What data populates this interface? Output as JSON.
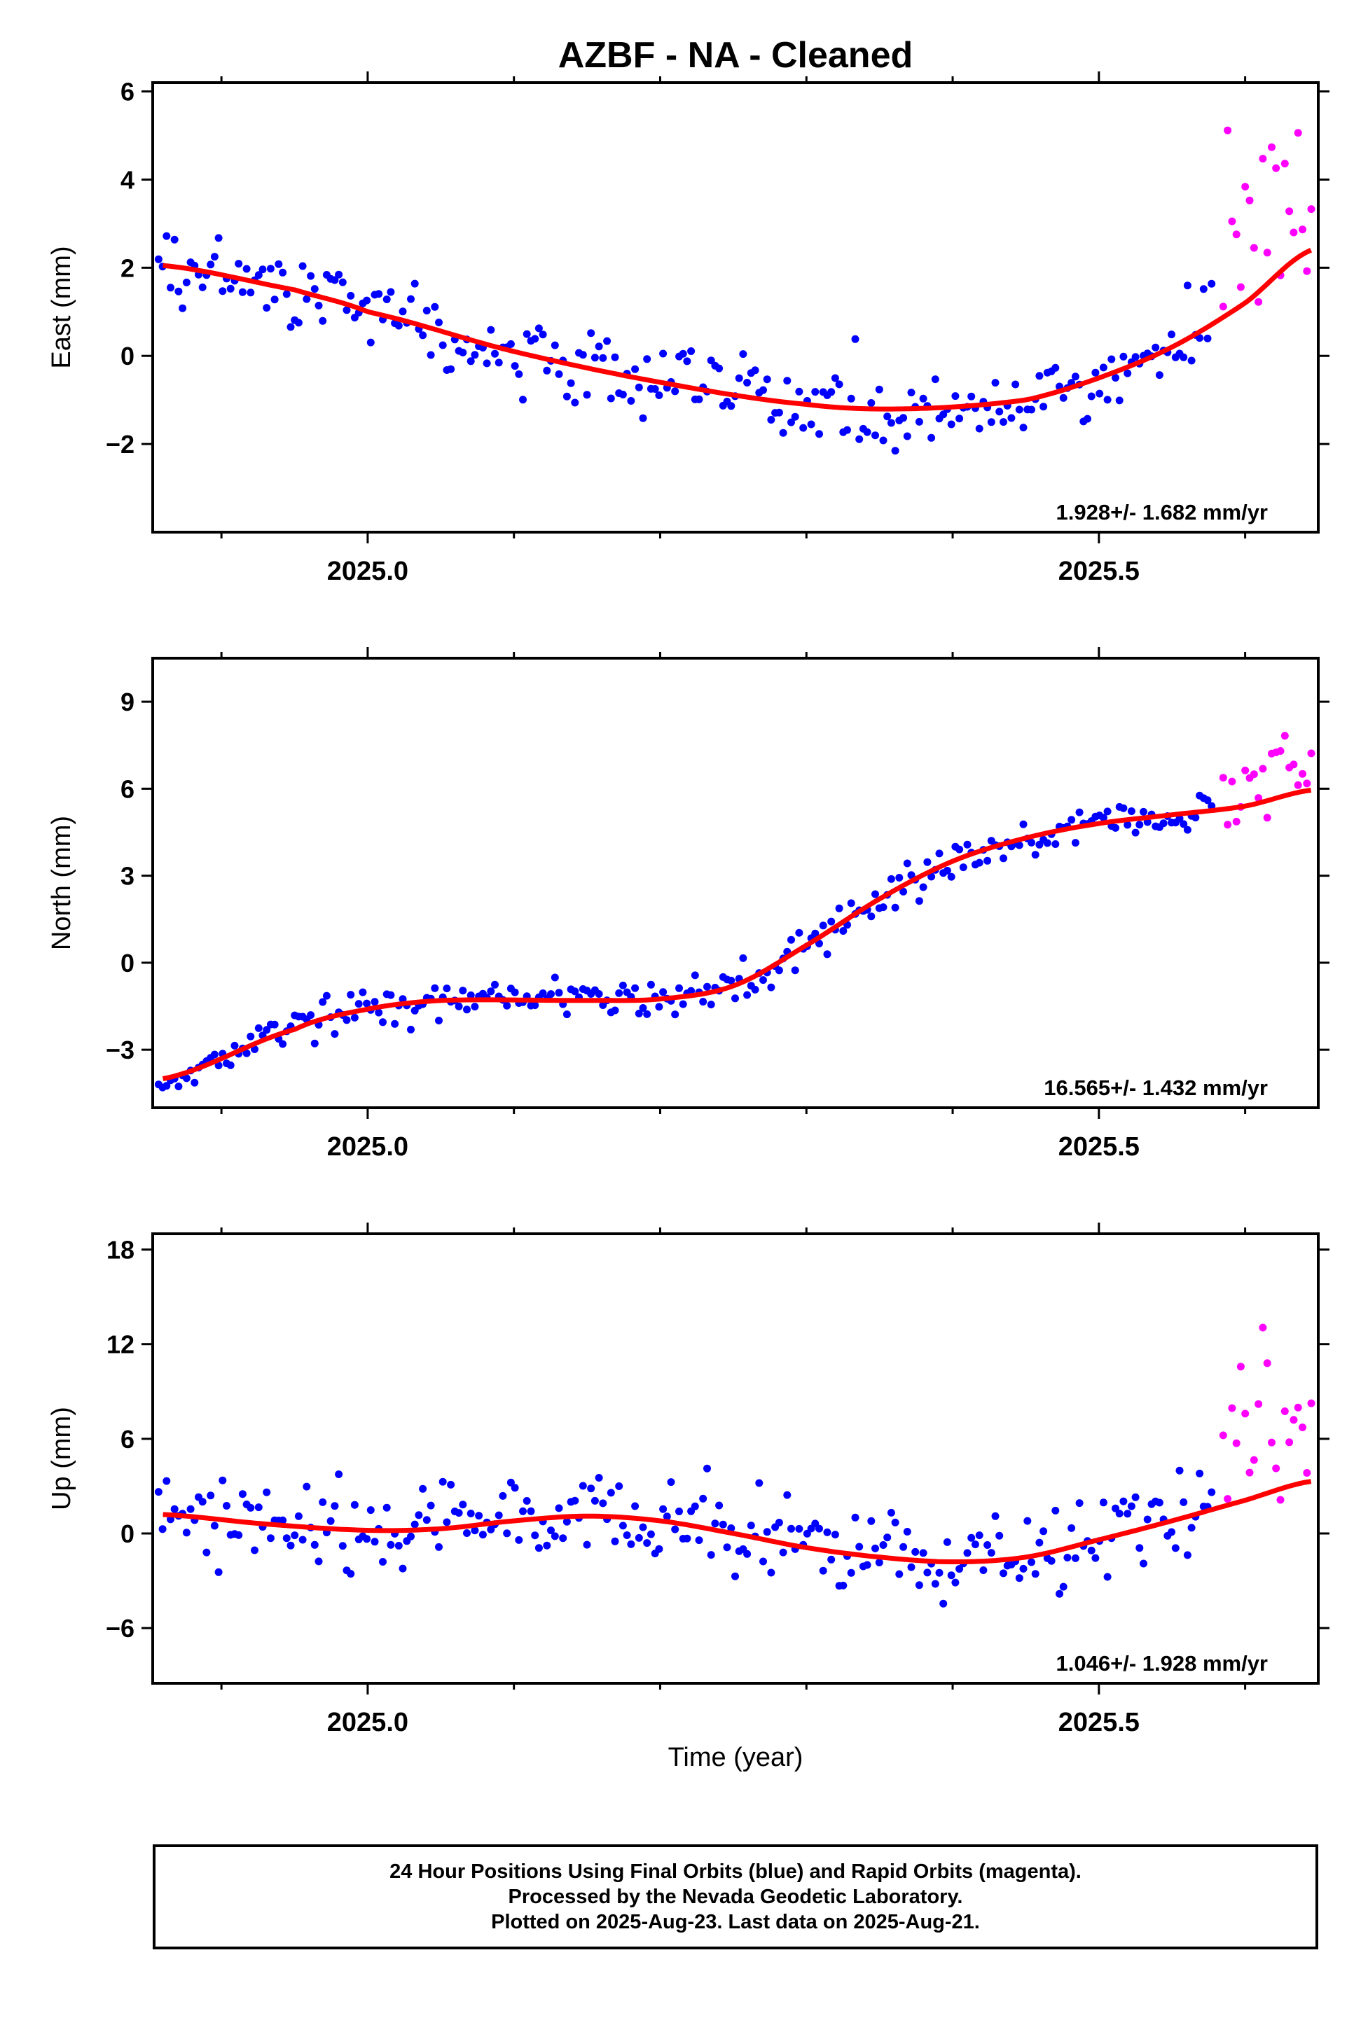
{
  "title": "AZBF  - NA - Cleaned",
  "xlabel": "Time (year)",
  "colors": {
    "final": "#0000ff",
    "rapid": "#ff00ff",
    "fit": "#ff0000",
    "frame": "#000000"
  },
  "footer": {
    "line1": "24 Hour Positions Using Final Orbits (blue) and Rapid Orbits (magenta).",
    "line2": "Processed by the Nevada Geodetic Laboratory.",
    "line3": "Plotted on 2025-Aug-23. Last data on 2025-Aug-21."
  },
  "chart_data": [
    {
      "type": "scatter",
      "ylabel": "East (mm)",
      "rate": "1.928+/- 1.682 mm/yr",
      "xlim": [
        2024.853,
        2025.65
      ],
      "ylim": [
        -4,
        6.2
      ],
      "xticks": [
        2025.0,
        2025.5
      ],
      "xminor": [
        2024.9,
        2025.1,
        2025.2,
        2025.3,
        2025.4,
        2025.6
      ],
      "yticks": [
        -2,
        0,
        2,
        4,
        6
      ],
      "yticklabels": [
        "−2",
        "0",
        "2",
        "4",
        "6"
      ],
      "fit": {
        "start": 2024.86,
        "end": 2025.645,
        "t1": 2025.37,
        "y1": -1.2,
        "tail": 2.4,
        "head": 2.05
      },
      "final_amp": 0.9,
      "rapid_amp": 2.3,
      "rapid_offset": 1.8
    },
    {
      "type": "scatter",
      "ylabel": "North (mm)",
      "rate": "16.565+/- 1.432 mm/yr",
      "xlim": [
        2024.853,
        2025.65
      ],
      "ylim": [
        -5,
        10.5
      ],
      "xticks": [
        2025.0,
        2025.5
      ],
      "xminor": [
        2024.9,
        2025.1,
        2025.2,
        2025.3,
        2025.4,
        2025.6
      ],
      "yticks": [
        -3,
        0,
        3,
        6,
        9
      ],
      "yticklabels": [
        "−3",
        "0",
        "3",
        "6",
        "9"
      ],
      "fit": {
        "type": "north"
      },
      "final_amp": 0.7,
      "rapid_amp": 1.4,
      "rapid_offset": 1.0
    },
    {
      "type": "scatter",
      "ylabel": "Up (mm)",
      "rate": "1.046+/- 1.928 mm/yr",
      "xlim": [
        2024.853,
        2025.65
      ],
      "ylim": [
        -9.5,
        19
      ],
      "xticks": [
        2025.0,
        2025.5
      ],
      "xminor": [
        2024.9,
        2025.1,
        2025.2,
        2025.3,
        2025.4,
        2025.6
      ],
      "yticks": [
        -6,
        0,
        6,
        12,
        18
      ],
      "yticklabels": [
        "−6",
        "0",
        "6",
        "12",
        "18"
      ],
      "fit": {
        "type": "up"
      },
      "final_amp": 3.0,
      "rapid_amp": 4.5,
      "rapid_offset": 6.0
    }
  ]
}
